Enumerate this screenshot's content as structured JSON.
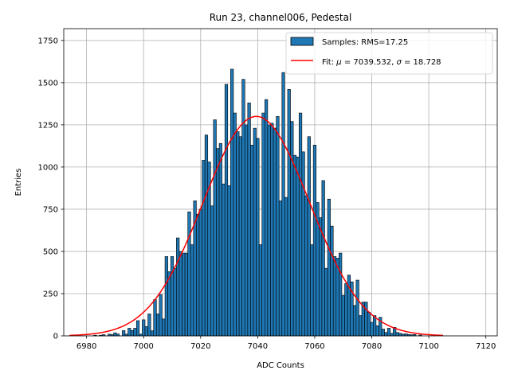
{
  "chart_data": {
    "type": "bar",
    "title": "Run 23, channel006, Pedestal",
    "xlabel": "ADC Counts",
    "ylabel": "Entries",
    "xlim": [
      6972,
      7124
    ],
    "ylim": [
      0,
      1820
    ],
    "x_ticks": [
      6980,
      7000,
      7020,
      7040,
      7060,
      7080,
      7100,
      7120
    ],
    "y_ticks": [
      0,
      250,
      500,
      750,
      1000,
      1250,
      1500,
      1750
    ],
    "grid": true,
    "legend_position": "top-right",
    "histogram": {
      "name": "Samples: RMS=17.25",
      "color": "#1f77b4",
      "bin_width": 1,
      "bins": [
        {
          "x": 6983,
          "y": 4
        },
        {
          "x": 6985,
          "y": 4
        },
        {
          "x": 6986,
          "y": 7
        },
        {
          "x": 6988,
          "y": 10
        },
        {
          "x": 6989,
          "y": 7
        },
        {
          "x": 6990,
          "y": 18
        },
        {
          "x": 6991,
          "y": 11
        },
        {
          "x": 6993,
          "y": 31
        },
        {
          "x": 6994,
          "y": 10
        },
        {
          "x": 6995,
          "y": 45
        },
        {
          "x": 6996,
          "y": 32
        },
        {
          "x": 6997,
          "y": 45
        },
        {
          "x": 6998,
          "y": 90
        },
        {
          "x": 6999,
          "y": 10
        },
        {
          "x": 7000,
          "y": 95
        },
        {
          "x": 7001,
          "y": 55
        },
        {
          "x": 7002,
          "y": 130
        },
        {
          "x": 7003,
          "y": 30
        },
        {
          "x": 7004,
          "y": 215
        },
        {
          "x": 7005,
          "y": 130
        },
        {
          "x": 7006,
          "y": 245
        },
        {
          "x": 7007,
          "y": 100
        },
        {
          "x": 7008,
          "y": 470
        },
        {
          "x": 7009,
          "y": 380
        },
        {
          "x": 7010,
          "y": 470
        },
        {
          "x": 7011,
          "y": 400
        },
        {
          "x": 7012,
          "y": 580
        },
        {
          "x": 7013,
          "y": 500
        },
        {
          "x": 7014,
          "y": 490
        },
        {
          "x": 7015,
          "y": 490
        },
        {
          "x": 7016,
          "y": 735
        },
        {
          "x": 7017,
          "y": 540
        },
        {
          "x": 7018,
          "y": 800
        },
        {
          "x": 7019,
          "y": 720
        },
        {
          "x": 7020,
          "y": 750
        },
        {
          "x": 7021,
          "y": 1040
        },
        {
          "x": 7022,
          "y": 1190
        },
        {
          "x": 7023,
          "y": 1030
        },
        {
          "x": 7024,
          "y": 770
        },
        {
          "x": 7025,
          "y": 1280
        },
        {
          "x": 7026,
          "y": 1110
        },
        {
          "x": 7027,
          "y": 1140
        },
        {
          "x": 7028,
          "y": 900
        },
        {
          "x": 7029,
          "y": 1490
        },
        {
          "x": 7030,
          "y": 890
        },
        {
          "x": 7031,
          "y": 1580
        },
        {
          "x": 7032,
          "y": 1320
        },
        {
          "x": 7033,
          "y": 1210
        },
        {
          "x": 7034,
          "y": 1180
        },
        {
          "x": 7035,
          "y": 1520
        },
        {
          "x": 7036,
          "y": 1250
        },
        {
          "x": 7037,
          "y": 1380
        },
        {
          "x": 7038,
          "y": 1130
        },
        {
          "x": 7039,
          "y": 1230
        },
        {
          "x": 7040,
          "y": 1170
        },
        {
          "x": 7041,
          "y": 540
        },
        {
          "x": 7042,
          "y": 1320
        },
        {
          "x": 7043,
          "y": 1400
        },
        {
          "x": 7044,
          "y": 1250
        },
        {
          "x": 7045,
          "y": 1260
        },
        {
          "x": 7046,
          "y": 1230
        },
        {
          "x": 7047,
          "y": 1300
        },
        {
          "x": 7048,
          "y": 800
        },
        {
          "x": 7049,
          "y": 1560
        },
        {
          "x": 7050,
          "y": 820
        },
        {
          "x": 7051,
          "y": 1460
        },
        {
          "x": 7052,
          "y": 1270
        },
        {
          "x": 7053,
          "y": 1070
        },
        {
          "x": 7054,
          "y": 1060
        },
        {
          "x": 7055,
          "y": 1320
        },
        {
          "x": 7056,
          "y": 1090
        },
        {
          "x": 7057,
          "y": 830
        },
        {
          "x": 7058,
          "y": 1180
        },
        {
          "x": 7059,
          "y": 540
        },
        {
          "x": 7060,
          "y": 1130
        },
        {
          "x": 7061,
          "y": 790
        },
        {
          "x": 7062,
          "y": 700
        },
        {
          "x": 7063,
          "y": 920
        },
        {
          "x": 7064,
          "y": 400
        },
        {
          "x": 7065,
          "y": 810
        },
        {
          "x": 7066,
          "y": 650
        },
        {
          "x": 7067,
          "y": 470
        },
        {
          "x": 7068,
          "y": 460
        },
        {
          "x": 7069,
          "y": 490
        },
        {
          "x": 7070,
          "y": 240
        },
        {
          "x": 7071,
          "y": 310
        },
        {
          "x": 7072,
          "y": 360
        },
        {
          "x": 7073,
          "y": 320
        },
        {
          "x": 7074,
          "y": 180
        },
        {
          "x": 7075,
          "y": 330
        },
        {
          "x": 7076,
          "y": 120
        },
        {
          "x": 7077,
          "y": 200
        },
        {
          "x": 7078,
          "y": 200
        },
        {
          "x": 7079,
          "y": 140
        },
        {
          "x": 7080,
          "y": 80
        },
        {
          "x": 7081,
          "y": 120
        },
        {
          "x": 7082,
          "y": 60
        },
        {
          "x": 7083,
          "y": 110
        },
        {
          "x": 7084,
          "y": 40
        },
        {
          "x": 7085,
          "y": 20
        },
        {
          "x": 7086,
          "y": 45
        },
        {
          "x": 7087,
          "y": 15
        },
        {
          "x": 7088,
          "y": 50
        },
        {
          "x": 7089,
          "y": 20
        },
        {
          "x": 7090,
          "y": 15
        },
        {
          "x": 7091,
          "y": 10
        },
        {
          "x": 7092,
          "y": 12
        },
        {
          "x": 7093,
          "y": 8
        },
        {
          "x": 7094,
          "y": 6
        },
        {
          "x": 7095,
          "y": 8
        },
        {
          "x": 7097,
          "y": 5
        }
      ]
    },
    "fit": {
      "name": "Fit: μ = 7039.532, σ = 18.728",
      "label_prefix": "Fit: ",
      "mu_symbol": "μ",
      "mu_text": " = 7039.532, ",
      "sigma_symbol": "σ",
      "sigma_text": " = 18.728",
      "type": "gaussian",
      "color": "#ff0000",
      "mu": 7039.532,
      "sigma": 18.728,
      "amplitude": 1300,
      "x_range": [
        6974,
        7105
      ]
    }
  }
}
